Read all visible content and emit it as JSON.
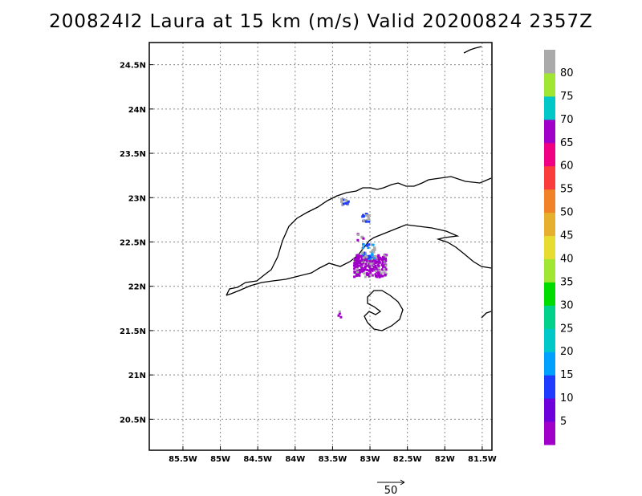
{
  "title": "200824I2 Laura at 15 km (m/s) Valid 20200824 2357Z",
  "map": {
    "lat_ticks": [
      "24.5N",
      "24N",
      "23.5N",
      "23N",
      "22.5N",
      "22N",
      "21.5N",
      "21N",
      "20.5N"
    ],
    "lon_ticks": [
      "85.5W",
      "85W",
      "84.5W",
      "84W",
      "83.5W",
      "83W",
      "82.5W",
      "82W",
      "81.5W"
    ],
    "lat_values": [
      24.5,
      24,
      23.5,
      23,
      22.5,
      22,
      21.5,
      21,
      20.5
    ],
    "lon_values": [
      -85.5,
      -85,
      -84.5,
      -84,
      -83.5,
      -83,
      -82.5,
      -82,
      -81.5
    ],
    "lat_range": [
      20.15,
      24.75
    ],
    "lon_range": [
      -85.95,
      -81.37
    ],
    "grid": "dotted"
  },
  "colorbar": {
    "labels": [
      "5",
      "10",
      "15",
      "20",
      "25",
      "30",
      "35",
      "40",
      "45",
      "50",
      "55",
      "60",
      "65",
      "70",
      "75",
      "80"
    ],
    "colors": [
      "#a000c8",
      "#6e00dc",
      "#1e3cff",
      "#00a0ff",
      "#00c8c8",
      "#00d28c",
      "#00dc00",
      "#a0e632",
      "#e6dc32",
      "#e6af2d",
      "#f08228",
      "#fa3c3c",
      "#f00082",
      "#a000c8",
      "#00c8c8",
      "#a0e632",
      "#aaaaaa"
    ]
  },
  "scale_vector": {
    "label": "50"
  },
  "wind_colors": {
    "purple": "#a000c8",
    "blue": "#1e3cff",
    "lightblue": "#00a0ff",
    "gray": "#aaaaaa"
  }
}
